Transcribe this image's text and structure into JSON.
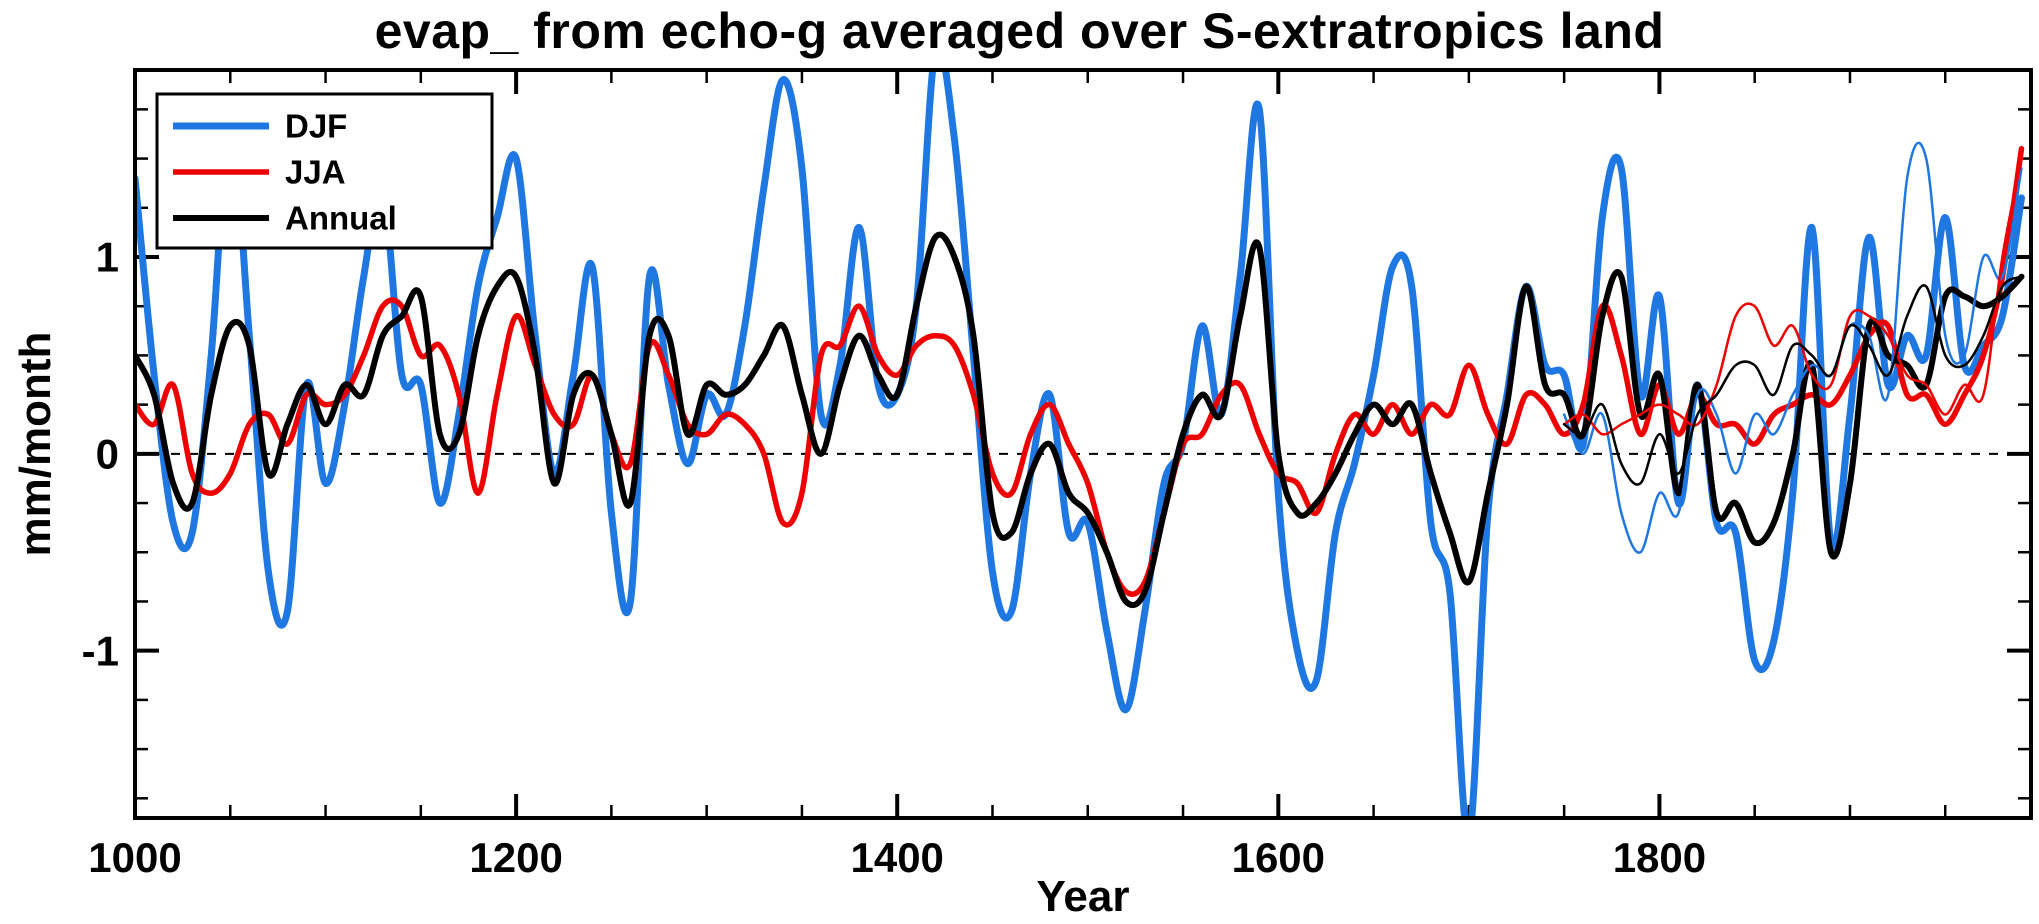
{
  "page": {
    "background": "#ffffff"
  },
  "chart_data": {
    "type": "line",
    "title": "evap_ from echo-g averaged over S-extratropics land",
    "xlabel": "Year",
    "ylabel": "mm/month",
    "xlim": [
      1000,
      1995
    ],
    "ylim": [
      -1.85,
      1.95
    ],
    "xticks": [
      1000,
      1200,
      1400,
      1600,
      1800
    ],
    "x_minor_step": 50,
    "yticks": [
      -1,
      0,
      1
    ],
    "y_minor_step": 0.25,
    "grid": false,
    "zero_line": {
      "y": 0,
      "style": "dashed",
      "color": "#000000"
    },
    "legend_position": "top-left",
    "axis_color": "#000000",
    "series": [
      {
        "name": "DJF",
        "show_in_legend": true,
        "color": "#1F78E1",
        "width": 7,
        "x_start": 1000,
        "x_step": 10,
        "y": [
          1.4,
          0.4,
          -0.35,
          -0.4,
          0.5,
          1.7,
          0.6,
          -0.6,
          -0.8,
          0.35,
          -0.15,
          0.25,
          0.9,
          1.35,
          0.4,
          0.35,
          -0.25,
          0.2,
          0.85,
          1.2,
          1.5,
          0.6,
          -0.1,
          0.4,
          0.95,
          -0.3,
          -0.75,
          0.9,
          0.35,
          -0.05,
          0.3,
          0.2,
          0.65,
          1.35,
          1.9,
          1.45,
          0.2,
          0.45,
          1.15,
          0.35,
          0.3,
          0.75,
          2.05,
          1.6,
          0.5,
          -0.6,
          -0.8,
          -0.1,
          0.3,
          -0.4,
          -0.35,
          -0.9,
          -1.3,
          -0.8,
          -0.15,
          0.05,
          0.65,
          0.2,
          0.9,
          1.75,
          -0.2,
          -1.0,
          -1.15,
          -0.4,
          -0.05,
          0.4,
          0.95,
          0.85,
          -0.35,
          -0.7,
          -1.95,
          -0.3,
          0.3,
          0.85,
          0.45,
          0.4,
          0.05,
          1.2,
          1.45,
          0.3,
          0.8,
          -0.25,
          0.35,
          -0.35,
          -0.4,
          -1.05,
          -0.95,
          -0.2,
          1.15,
          -0.45,
          0.2,
          1.1,
          0.35,
          0.6,
          0.5,
          1.2,
          0.45,
          0.55,
          0.7,
          1.3
        ]
      },
      {
        "name": "JJA",
        "show_in_legend": true,
        "color": "#EE0000",
        "width": 5.5,
        "x_start": 1000,
        "x_step": 10,
        "y": [
          0.25,
          0.15,
          0.35,
          -0.1,
          -0.2,
          -0.1,
          0.15,
          0.2,
          0.05,
          0.3,
          0.25,
          0.3,
          0.5,
          0.75,
          0.75,
          0.5,
          0.55,
          0.3,
          -0.2,
          0.3,
          0.7,
          0.45,
          0.2,
          0.15,
          0.4,
          0.1,
          -0.05,
          0.55,
          0.4,
          0.15,
          0.1,
          0.2,
          0.15,
          0.0,
          -0.35,
          -0.2,
          0.5,
          0.55,
          0.75,
          0.5,
          0.4,
          0.55,
          0.6,
          0.55,
          0.3,
          -0.1,
          -0.2,
          0.1,
          0.25,
          0.05,
          -0.15,
          -0.5,
          -0.7,
          -0.65,
          -0.3,
          0.05,
          0.1,
          0.3,
          0.35,
          0.1,
          -0.1,
          -0.15,
          -0.3,
          0.0,
          0.2,
          0.1,
          0.25,
          0.1,
          0.25,
          0.2,
          0.45,
          0.2,
          0.05,
          0.3,
          0.25,
          0.1,
          0.25,
          0.75,
          0.5,
          0.1,
          0.35,
          0.1,
          0.3,
          0.15,
          0.15,
          0.05,
          0.2,
          0.25,
          0.3,
          0.25,
          0.4,
          0.6,
          0.65,
          0.3,
          0.3,
          0.15,
          0.3,
          0.5,
          0.9,
          1.55
        ]
      },
      {
        "name": "Annual",
        "show_in_legend": true,
        "color": "#000000",
        "width": 6,
        "x_start": 1000,
        "x_step": 10,
        "y": [
          0.5,
          0.3,
          -0.15,
          -0.25,
          0.3,
          0.65,
          0.55,
          -0.1,
          0.15,
          0.35,
          0.15,
          0.35,
          0.3,
          0.6,
          0.7,
          0.8,
          0.1,
          0.1,
          0.6,
          0.85,
          0.9,
          0.5,
          -0.15,
          0.3,
          0.4,
          0.1,
          -0.25,
          0.6,
          0.6,
          0.1,
          0.35,
          0.3,
          0.35,
          0.5,
          0.65,
          0.3,
          0.0,
          0.35,
          0.6,
          0.4,
          0.3,
          0.75,
          1.1,
          1.0,
          0.6,
          -0.3,
          -0.4,
          -0.1,
          0.05,
          -0.2,
          -0.3,
          -0.5,
          -0.75,
          -0.7,
          -0.3,
          0.1,
          0.3,
          0.2,
          0.7,
          1.05,
          0.0,
          -0.3,
          -0.25,
          -0.1,
          0.1,
          0.25,
          0.15,
          0.25,
          -0.1,
          -0.4,
          -0.65,
          -0.2,
          0.25,
          0.85,
          0.35,
          0.3,
          0.1,
          0.7,
          0.9,
          0.2,
          0.4,
          -0.2,
          0.35,
          -0.3,
          -0.25,
          -0.45,
          -0.35,
          0.0,
          0.45,
          -0.5,
          -0.15,
          0.65,
          0.5,
          0.45,
          0.35,
          0.8,
          0.8,
          0.75,
          0.8,
          0.9
        ]
      },
      {
        "name": "DJF (thin member)",
        "show_in_legend": false,
        "color": "#1F78E1",
        "width": 2.5,
        "x_start": 1750,
        "x_step": 10,
        "y": [
          0.2,
          0.0,
          0.2,
          -0.3,
          -0.5,
          -0.2,
          -0.3,
          0.3,
          0.2,
          -0.1,
          0.2,
          0.1,
          0.3,
          0.45,
          0.4,
          0.65,
          0.6,
          0.3,
          1.4,
          1.5,
          0.6,
          0.5,
          1.0,
          0.9,
          1.45
        ]
      },
      {
        "name": "JJA (thin member)",
        "show_in_legend": false,
        "color": "#EE0000",
        "width": 2.5,
        "x_start": 1750,
        "x_step": 10,
        "y": [
          0.15,
          0.2,
          0.1,
          0.15,
          0.2,
          0.25,
          0.2,
          0.15,
          0.35,
          0.7,
          0.75,
          0.55,
          0.65,
          0.4,
          0.35,
          0.7,
          0.7,
          0.6,
          0.4,
          0.35,
          0.2,
          0.35,
          0.3,
          1.0,
          1.5
        ]
      },
      {
        "name": "Annual (thin member)",
        "show_in_legend": false,
        "color": "#000000",
        "width": 2.5,
        "x_start": 1750,
        "x_step": 10,
        "y": [
          0.15,
          0.1,
          0.25,
          -0.05,
          -0.15,
          0.1,
          -0.1,
          0.2,
          0.3,
          0.45,
          0.45,
          0.3,
          0.55,
          0.5,
          0.4,
          0.65,
          0.55,
          0.4,
          0.7,
          0.85,
          0.5,
          0.45,
          0.6,
          0.85,
          0.9
        ]
      }
    ]
  }
}
